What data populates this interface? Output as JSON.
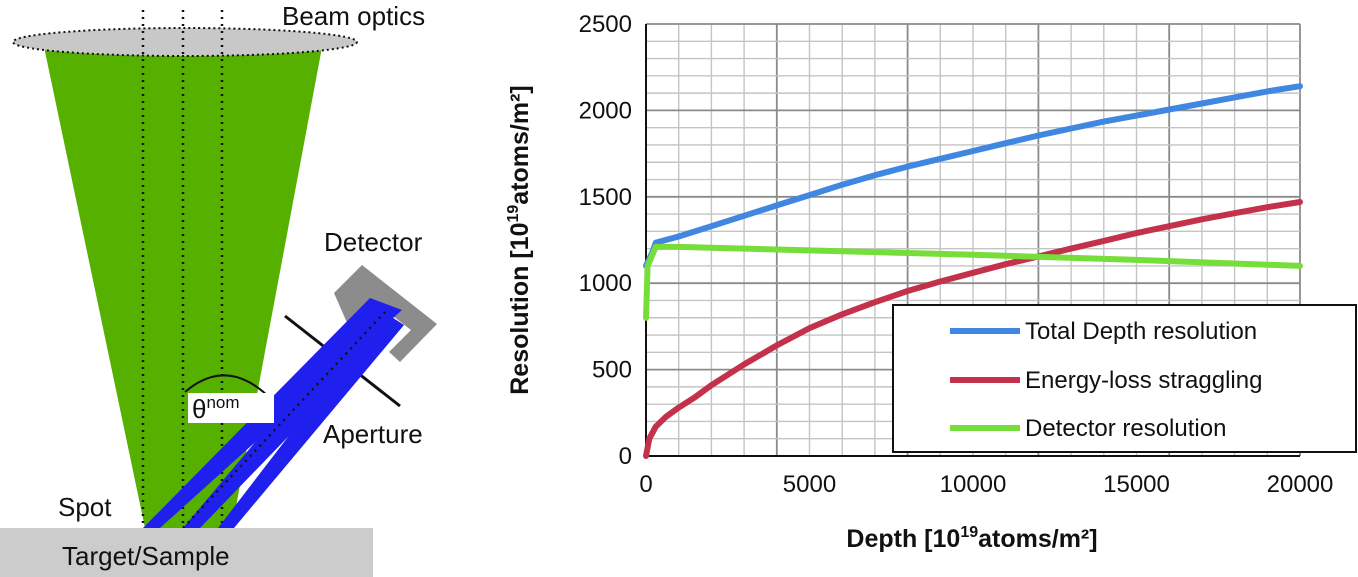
{
  "diagram": {
    "labels": {
      "beam_optics": "Beam optics",
      "detector": "Detector",
      "aperture": "Aperture",
      "spot": "Spot",
      "target": "Target/Sample",
      "theta_symbol": "θ",
      "theta_superscript": "nom"
    },
    "colors": {
      "beam_cone": "#55b000",
      "detected_beam": "#2020ee",
      "detector_body": "#8c8c8c",
      "optics_lens": "#c8c8c8",
      "target_block": "#cccccc"
    }
  },
  "chart_data": {
    "type": "line",
    "xlabel": {
      "prefix": "Depth [10",
      "sup": "19",
      "suffix": "atoms/m²]"
    },
    "ylabel": {
      "prefix": "Resolution [10",
      "sup": "19",
      "suffix": "atoms/m²]"
    },
    "xlim": [
      0,
      20000
    ],
    "ylim": [
      0,
      2500
    ],
    "x_ticks": [
      0,
      5000,
      10000,
      15000,
      20000
    ],
    "x_tick_labels": [
      "0",
      "5000",
      "10000",
      "15000",
      "20000"
    ],
    "y_ticks": [
      0,
      500,
      1000,
      1500,
      2000,
      2500
    ],
    "y_tick_labels": [
      "0",
      "500",
      "1000",
      "1500",
      "2000",
      "2500"
    ],
    "grid": true,
    "legend_position": "bottom-right",
    "series": [
      {
        "name": "Total Depth resolution",
        "color": "#3f87e0",
        "points": [
          [
            0,
            1100
          ],
          [
            200,
            1180
          ],
          [
            300,
            1235
          ],
          [
            1000,
            1270
          ],
          [
            2000,
            1330
          ],
          [
            3000,
            1390
          ],
          [
            4000,
            1450
          ],
          [
            5000,
            1510
          ],
          [
            6000,
            1570
          ],
          [
            7000,
            1625
          ],
          [
            8000,
            1675
          ],
          [
            9000,
            1720
          ],
          [
            10000,
            1765
          ],
          [
            11000,
            1810
          ],
          [
            12000,
            1855
          ],
          [
            13000,
            1895
          ],
          [
            14000,
            1935
          ],
          [
            15000,
            1970
          ],
          [
            16000,
            2005
          ],
          [
            17000,
            2040
          ],
          [
            18000,
            2075
          ],
          [
            19000,
            2110
          ],
          [
            20000,
            2140
          ]
        ]
      },
      {
        "name": "Energy-loss straggling",
        "color": "#c4314b",
        "points": [
          [
            0,
            0
          ],
          [
            100,
            100
          ],
          [
            300,
            170
          ],
          [
            600,
            225
          ],
          [
            1000,
            280
          ],
          [
            1500,
            340
          ],
          [
            2000,
            410
          ],
          [
            3000,
            530
          ],
          [
            4000,
            640
          ],
          [
            5000,
            740
          ],
          [
            6000,
            820
          ],
          [
            7000,
            890
          ],
          [
            8000,
            955
          ],
          [
            9000,
            1010
          ],
          [
            10000,
            1060
          ],
          [
            11000,
            1110
          ],
          [
            12000,
            1155
          ],
          [
            13000,
            1200
          ],
          [
            14000,
            1245
          ],
          [
            15000,
            1290
          ],
          [
            16000,
            1330
          ],
          [
            17000,
            1370
          ],
          [
            18000,
            1405
          ],
          [
            19000,
            1440
          ],
          [
            20000,
            1470
          ]
        ]
      },
      {
        "name": "Detector resolution",
        "color": "#77dd3a",
        "points": [
          [
            0,
            800
          ],
          [
            50,
            1100
          ],
          [
            300,
            1210
          ],
          [
            1000,
            1210
          ],
          [
            5000,
            1190
          ],
          [
            10000,
            1165
          ],
          [
            15000,
            1135
          ],
          [
            20000,
            1100
          ]
        ]
      }
    ]
  }
}
